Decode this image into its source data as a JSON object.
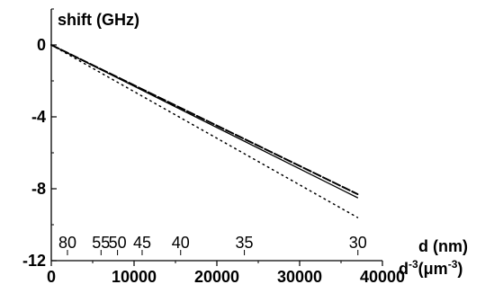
{
  "chart_data": {
    "type": "line",
    "title": "",
    "ylabel": "shift (GHz)",
    "xlabel_base": "d",
    "xlabel_sup": "-3",
    "xlabel_unit_open": "(",
    "xlabel_unit_mu": "μm",
    "xlabel_unit_sup": "-3",
    "xlabel_unit_close": ")",
    "top_axis_label": "d (nm)",
    "xlim": [
      0,
      40000
    ],
    "ylim": [
      -12,
      2
    ],
    "x_ticks": [
      "0",
      "10000",
      "20000",
      "30000",
      "40000"
    ],
    "y_ticks": [
      "0",
      "-4",
      "-8",
      "-12"
    ],
    "x_tick_values": [
      0,
      10000,
      20000,
      30000,
      40000
    ],
    "y_tick_values": [
      0,
      -4,
      -8,
      -12
    ],
    "top_ticks": [
      {
        "label": "80",
        "d_nm": 80
      },
      {
        "label": "55",
        "d_nm": 55
      },
      {
        "label": "50",
        "d_nm": 50
      },
      {
        "label": "45",
        "d_nm": 45
      },
      {
        "label": "40",
        "d_nm": 40
      },
      {
        "label": "35",
        "d_nm": 35
      },
      {
        "label": "30",
        "d_nm": 30
      }
    ],
    "series": [
      {
        "style": "solid",
        "x": [
          0,
          37000
        ],
        "y": [
          0,
          -8.5
        ]
      },
      {
        "style": "dashed",
        "x": [
          0,
          37000
        ],
        "y": [
          0,
          -8.3
        ]
      },
      {
        "style": "dotted",
        "x": [
          0,
          37000
        ],
        "y": [
          0,
          -9.6
        ]
      }
    ]
  }
}
